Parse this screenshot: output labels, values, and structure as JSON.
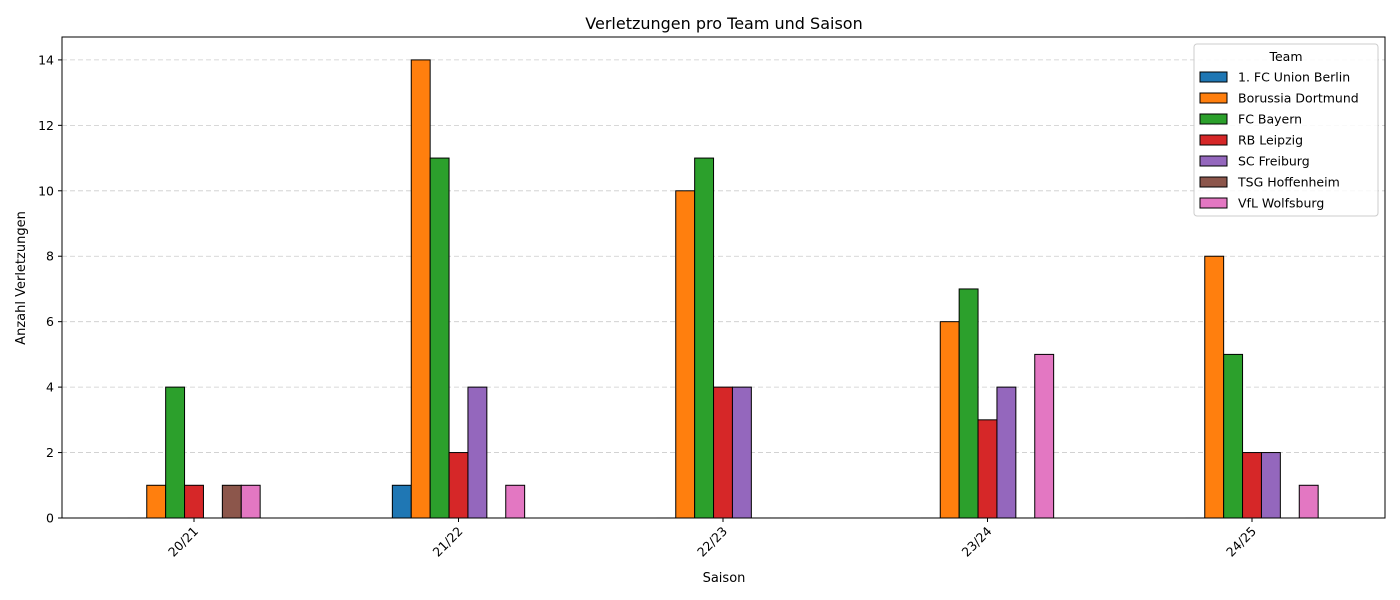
{
  "chart_data": {
    "type": "bar",
    "title": "Verletzungen pro Team und Saison",
    "xlabel": "Saison",
    "ylabel": "Anzahl Verletzungen",
    "categories": [
      "20/21",
      "21/22",
      "22/23",
      "23/24",
      "24/25"
    ],
    "ylim": [
      0,
      14.7
    ],
    "yticks": [
      0,
      2,
      4,
      6,
      8,
      10,
      12,
      14
    ],
    "grid": true,
    "legend_title": "Team",
    "legend_position": "top-right",
    "series": [
      {
        "name": "1. FC Union Berlin",
        "color": "#1f77b4",
        "values": [
          0,
          1,
          0,
          0,
          0
        ]
      },
      {
        "name": "Borussia Dortmund",
        "color": "#ff7f0e",
        "values": [
          1,
          14,
          10,
          6,
          8
        ]
      },
      {
        "name": "FC Bayern",
        "color": "#2ca02c",
        "values": [
          4,
          11,
          11,
          7,
          5
        ]
      },
      {
        "name": "RB Leipzig",
        "color": "#d62728",
        "values": [
          1,
          2,
          4,
          3,
          2
        ]
      },
      {
        "name": "SC Freiburg",
        "color": "#9467bd",
        "values": [
          0,
          4,
          4,
          4,
          2
        ]
      },
      {
        "name": "TSG Hoffenheim",
        "color": "#8c564b",
        "values": [
          1,
          0,
          0,
          0,
          0
        ]
      },
      {
        "name": "VfL Wolfsburg",
        "color": "#e377c2",
        "values": [
          1,
          1,
          0,
          5,
          1
        ]
      }
    ]
  }
}
